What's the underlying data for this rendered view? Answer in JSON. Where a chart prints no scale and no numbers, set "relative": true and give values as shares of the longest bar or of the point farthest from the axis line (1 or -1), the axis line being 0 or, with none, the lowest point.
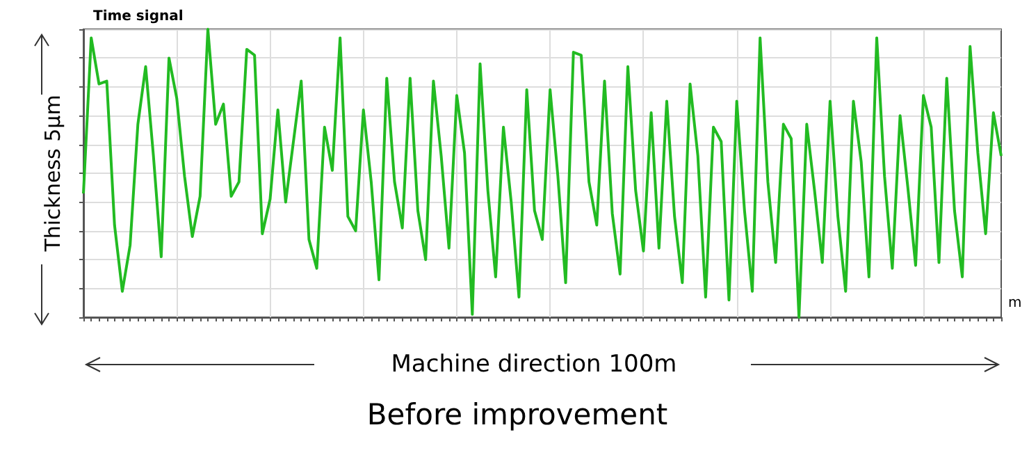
{
  "chart_data": {
    "type": "line",
    "title": "Time signal",
    "xlabel": "Machine direction 100m",
    "ylabel": "Thickness 5μm",
    "annotations": [
      "m",
      "Before improvement"
    ],
    "relative": true,
    "grid": true,
    "marker": "none",
    "line_style": "solid",
    "categories": [
      null,
      null,
      null,
      null,
      null,
      null,
      null,
      null,
      null,
      null,
      null,
      null,
      null,
      null,
      null,
      null,
      null,
      null,
      null,
      null,
      null,
      null,
      null,
      null,
      null,
      null,
      null,
      null,
      null,
      null,
      null,
      null,
      null,
      null,
      null,
      null,
      null,
      null,
      null,
      null,
      null,
      null,
      null,
      null,
      null,
      null,
      null,
      null,
      null,
      null,
      null,
      null,
      null,
      null,
      null,
      null,
      null,
      null,
      null,
      null,
      null,
      null,
      null,
      null,
      null,
      null,
      null,
      null,
      null,
      null,
      null,
      null,
      null,
      null,
      null,
      null,
      null,
      null,
      null,
      null,
      null,
      null,
      null,
      null,
      null,
      null,
      null,
      null,
      null,
      null,
      null,
      null,
      null,
      null,
      null,
      null,
      null,
      null,
      null,
      null,
      null,
      null,
      null,
      null,
      null,
      null,
      null,
      null,
      null,
      null,
      null,
      null,
      null,
      null,
      null,
      null,
      null,
      null,
      null
    ],
    "series": [
      {
        "color": "#22bb22",
        "values": [
          0.43,
          0.97,
          0.81,
          0.82,
          0.32,
          0.09,
          0.25,
          0.67,
          0.87,
          0.56,
          0.21,
          0.9,
          0.76,
          0.49,
          0.28,
          0.42,
          1,
          0.67,
          0.74,
          0.42,
          0.47,
          0.93,
          0.91,
          0.29,
          0.41,
          0.72,
          0.4,
          0.61,
          0.82,
          0.27,
          0.17,
          0.66,
          0.51,
          0.97,
          0.35,
          0.3,
          0.72,
          0.47,
          0.13,
          0.83,
          0.47,
          0.31,
          0.83,
          0.37,
          0.2,
          0.82,
          0.56,
          0.24,
          0.77,
          0.57,
          0.01,
          0.88,
          0.44,
          0.14,
          0.66,
          0.4,
          0.07,
          0.79,
          0.37,
          0.27,
          0.79,
          0.49,
          0.12,
          0.92,
          0.91,
          0.47,
          0.32,
          0.82,
          0.36,
          0.15,
          0.87,
          0.44,
          0.23,
          0.71,
          0.24,
          0.75,
          0.35,
          0.12,
          0.81,
          0.56,
          0.07,
          0.66,
          0.61,
          0.06,
          0.75,
          0.37,
          0.09,
          0.97,
          0.47,
          0.19,
          0.67,
          0.62,
          0,
          0.67,
          0.44,
          0.19,
          0.75,
          0.35,
          0.09,
          0.75,
          0.54,
          0.14,
          0.97,
          0.49,
          0.17,
          0.7,
          0.45,
          0.18,
          0.77,
          0.66,
          0.19,
          0.83,
          0.37,
          0.14,
          0.94,
          0.57,
          0.29,
          0.71,
          0.56
        ]
      }
    ]
  }
}
